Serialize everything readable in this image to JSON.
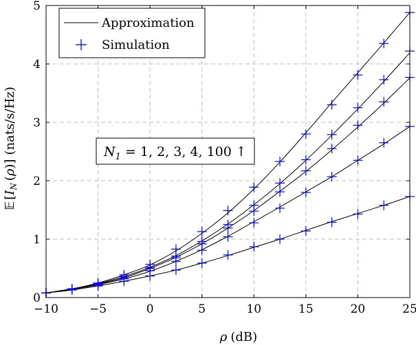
{
  "chart_data": {
    "type": "line",
    "xlabel": "ρ (dB)",
    "ylabel": "𝔼[I_N(ρ)] (nats/s/Hz)",
    "xlim": [
      -10,
      25
    ],
    "ylim": [
      0,
      5
    ],
    "xticks": [
      -10,
      -5,
      0,
      5,
      10,
      15,
      20,
      25
    ],
    "yticks": [
      0,
      1,
      2,
      3,
      4,
      5
    ],
    "xtick_labels": [
      "−10",
      "−5",
      "0",
      "5",
      "10",
      "15",
      "20",
      "25"
    ],
    "ytick_labels": [
      "0",
      "1",
      "2",
      "3",
      "4",
      "5"
    ],
    "grid": true,
    "legend_position": "top-left",
    "legend": [
      {
        "label": "Approximation",
        "style": "line",
        "color": "#000000"
      },
      {
        "label": "Simulation",
        "style": "plus-marker",
        "color": "#0000ff"
      }
    ],
    "annotation": {
      "text": "N₁ = 1, 2, 3, 4, 100 ↑",
      "math_parts": {
        "var": "N",
        "sub": "1",
        "rest": " = 1, 2, 3, 4, 100 ↑"
      }
    },
    "x": [
      -10,
      -7.5,
      -5,
      -2.5,
      0,
      2.5,
      5,
      7.5,
      10,
      12.5,
      15,
      17.5,
      20,
      22.5,
      25
    ],
    "series": [
      {
        "approximation": [
          0.08,
          0.13,
          0.2,
          0.28,
          0.37,
          0.47,
          0.59,
          0.72,
          0.86,
          1.0,
          1.15,
          1.3,
          1.44,
          1.58,
          1.73
        ],
        "simulation": [
          0.08,
          0.13,
          0.2,
          0.28,
          0.37,
          0.47,
          0.59,
          0.73,
          0.87,
          1.0,
          1.14,
          1.29,
          1.43,
          1.58,
          1.73
        ]
      },
      {
        "approximation": [
          0.08,
          0.14,
          0.22,
          0.32,
          0.45,
          0.62,
          0.82,
          1.05,
          1.3,
          1.55,
          1.81,
          2.07,
          2.35,
          2.63,
          2.93
        ],
        "simulation": [
          0.08,
          0.14,
          0.22,
          0.32,
          0.46,
          0.62,
          0.81,
          1.04,
          1.28,
          1.53,
          1.8,
          2.07,
          2.35,
          2.65,
          2.93
        ]
      },
      {
        "approximation": [
          0.08,
          0.15,
          0.23,
          0.34,
          0.5,
          0.69,
          0.92,
          1.19,
          1.49,
          1.82,
          2.16,
          2.53,
          2.92,
          3.33,
          3.76
        ],
        "simulation": [
          0.08,
          0.15,
          0.23,
          0.34,
          0.5,
          0.68,
          0.92,
          1.19,
          1.48,
          1.81,
          2.17,
          2.55,
          2.95,
          3.35,
          3.77
        ]
      },
      {
        "approximation": [
          0.08,
          0.15,
          0.24,
          0.36,
          0.52,
          0.72,
          0.97,
          1.26,
          1.59,
          1.95,
          2.35,
          2.78,
          3.23,
          3.7,
          4.19
        ],
        "simulation": [
          0.08,
          0.15,
          0.24,
          0.36,
          0.52,
          0.71,
          0.96,
          1.25,
          1.58,
          1.96,
          2.36,
          2.79,
          3.25,
          3.73,
          4.22
        ]
      },
      {
        "approximation": [
          0.08,
          0.15,
          0.25,
          0.39,
          0.56,
          0.8,
          1.1,
          1.45,
          1.86,
          2.32,
          2.82,
          3.34,
          3.85,
          4.36,
          4.88
        ],
        "simulation": [
          0.08,
          0.15,
          0.25,
          0.39,
          0.57,
          0.83,
          1.13,
          1.49,
          1.89,
          2.33,
          2.8,
          3.3,
          3.81,
          4.35,
          4.88
        ]
      }
    ],
    "colors": {
      "approximation": "#000000",
      "simulation": "#0000ff",
      "grid": "#bfbfbf"
    }
  }
}
